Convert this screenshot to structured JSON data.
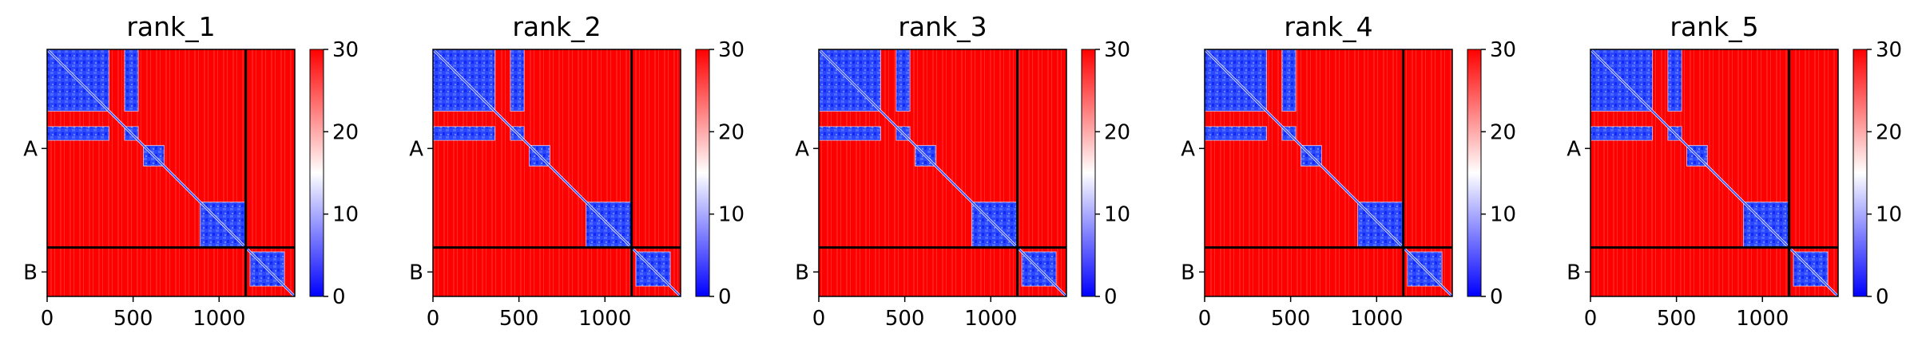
{
  "chart_data": [
    {
      "type": "heatmap",
      "title": "rank_1",
      "x_ticks": [
        0,
        500,
        1000
      ],
      "xlim": [
        0,
        1440
      ],
      "chain_labels": [
        "A",
        "B"
      ],
      "chain_boundary": 1155,
      "colorbar": {
        "ticks": [
          0,
          10,
          20,
          30
        ],
        "range": [
          0,
          30
        ],
        "colormap": "bwr"
      },
      "low_error_blocks": [
        {
          "x": [
            0,
            360
          ],
          "y": [
            0,
            360
          ]
        },
        {
          "x": [
            450,
            530
          ],
          "y": [
            0,
            360
          ]
        },
        {
          "x": [
            0,
            360
          ],
          "y": [
            450,
            530
          ]
        },
        {
          "x": [
            450,
            530
          ],
          "y": [
            450,
            530
          ]
        },
        {
          "x": [
            560,
            680
          ],
          "y": [
            560,
            680
          ]
        },
        {
          "x": [
            890,
            1155
          ],
          "y": [
            890,
            1155
          ]
        },
        {
          "x": [
            1180,
            1380
          ],
          "y": [
            1180,
            1380
          ]
        }
      ]
    },
    {
      "type": "heatmap",
      "title": "rank_2",
      "x_ticks": [
        0,
        500,
        1000
      ],
      "xlim": [
        0,
        1440
      ],
      "chain_labels": [
        "A",
        "B"
      ],
      "chain_boundary": 1155,
      "colorbar": {
        "ticks": [
          0,
          10,
          20,
          30
        ],
        "range": [
          0,
          30
        ],
        "colormap": "bwr"
      },
      "low_error_blocks": [
        {
          "x": [
            0,
            360
          ],
          "y": [
            0,
            360
          ]
        },
        {
          "x": [
            450,
            530
          ],
          "y": [
            0,
            360
          ]
        },
        {
          "x": [
            0,
            360
          ],
          "y": [
            450,
            530
          ]
        },
        {
          "x": [
            450,
            530
          ],
          "y": [
            450,
            530
          ]
        },
        {
          "x": [
            560,
            680
          ],
          "y": [
            560,
            680
          ]
        },
        {
          "x": [
            890,
            1155
          ],
          "y": [
            890,
            1155
          ]
        },
        {
          "x": [
            1180,
            1380
          ],
          "y": [
            1180,
            1380
          ]
        }
      ]
    },
    {
      "type": "heatmap",
      "title": "rank_3",
      "x_ticks": [
        0,
        500,
        1000
      ],
      "xlim": [
        0,
        1440
      ],
      "chain_labels": [
        "A",
        "B"
      ],
      "chain_boundary": 1155,
      "colorbar": {
        "ticks": [
          0,
          10,
          20,
          30
        ],
        "range": [
          0,
          30
        ],
        "colormap": "bwr"
      },
      "low_error_blocks": [
        {
          "x": [
            0,
            360
          ],
          "y": [
            0,
            360
          ]
        },
        {
          "x": [
            450,
            530
          ],
          "y": [
            0,
            360
          ]
        },
        {
          "x": [
            0,
            360
          ],
          "y": [
            450,
            530
          ]
        },
        {
          "x": [
            450,
            530
          ],
          "y": [
            450,
            530
          ]
        },
        {
          "x": [
            560,
            680
          ],
          "y": [
            560,
            680
          ]
        },
        {
          "x": [
            890,
            1155
          ],
          "y": [
            890,
            1155
          ]
        },
        {
          "x": [
            1180,
            1380
          ],
          "y": [
            1180,
            1380
          ]
        }
      ]
    },
    {
      "type": "heatmap",
      "title": "rank_4",
      "x_ticks": [
        0,
        500,
        1000
      ],
      "xlim": [
        0,
        1440
      ],
      "chain_labels": [
        "A",
        "B"
      ],
      "chain_boundary": 1155,
      "colorbar": {
        "ticks": [
          0,
          10,
          20,
          30
        ],
        "range": [
          0,
          30
        ],
        "colormap": "bwr"
      },
      "low_error_blocks": [
        {
          "x": [
            0,
            360
          ],
          "y": [
            0,
            360
          ]
        },
        {
          "x": [
            450,
            530
          ],
          "y": [
            0,
            360
          ]
        },
        {
          "x": [
            0,
            360
          ],
          "y": [
            450,
            530
          ]
        },
        {
          "x": [
            450,
            530
          ],
          "y": [
            450,
            530
          ]
        },
        {
          "x": [
            560,
            680
          ],
          "y": [
            560,
            680
          ]
        },
        {
          "x": [
            890,
            1155
          ],
          "y": [
            890,
            1155
          ]
        },
        {
          "x": [
            1180,
            1380
          ],
          "y": [
            1180,
            1380
          ]
        }
      ]
    },
    {
      "type": "heatmap",
      "title": "rank_5",
      "x_ticks": [
        0,
        500,
        1000
      ],
      "xlim": [
        0,
        1440
      ],
      "chain_labels": [
        "A",
        "B"
      ],
      "chain_boundary": 1155,
      "colorbar": {
        "ticks": [
          0,
          10,
          20,
          30
        ],
        "range": [
          0,
          30
        ],
        "colormap": "bwr"
      },
      "low_error_blocks": [
        {
          "x": [
            0,
            360
          ],
          "y": [
            0,
            360
          ]
        },
        {
          "x": [
            450,
            530
          ],
          "y": [
            0,
            360
          ]
        },
        {
          "x": [
            0,
            360
          ],
          "y": [
            450,
            530
          ]
        },
        {
          "x": [
            450,
            530
          ],
          "y": [
            450,
            530
          ]
        },
        {
          "x": [
            560,
            680
          ],
          "y": [
            560,
            680
          ]
        },
        {
          "x": [
            890,
            1155
          ],
          "y": [
            890,
            1155
          ]
        },
        {
          "x": [
            1180,
            1380
          ],
          "y": [
            1180,
            1380
          ]
        }
      ]
    }
  ],
  "colors": {
    "high_error": "#ff0000",
    "low_error": "#1e3cff",
    "mid": "#ffffff",
    "lines": "#000000"
  }
}
